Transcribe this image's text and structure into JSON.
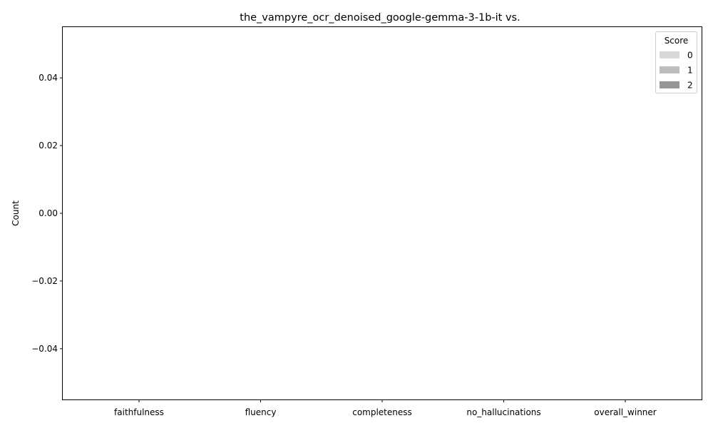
{
  "chart_data": {
    "type": "bar",
    "title": "the_vampyre_ocr_denoised_google-gemma-3-1b-it vs.",
    "xlabel": "",
    "ylabel": "Count",
    "categories": [
      "faithfulness",
      "fluency",
      "completeness",
      "no_hallucinations",
      "overall_winner"
    ],
    "series": [
      {
        "name": "0",
        "values": [
          0,
          0,
          0,
          0,
          0
        ],
        "color": "#d9d9d9"
      },
      {
        "name": "1",
        "values": [
          0,
          0,
          0,
          0,
          0
        ],
        "color": "#bdbdbd"
      },
      {
        "name": "2",
        "values": [
          0,
          0,
          0,
          0,
          0
        ],
        "color": "#969696"
      }
    ],
    "ylim": [
      -0.055,
      0.055
    ],
    "yticks": [
      -0.04,
      -0.02,
      0.0,
      0.02,
      0.04
    ],
    "ytick_labels": [
      "−0.04",
      "−0.02",
      "0.00",
      "0.02",
      "0.04"
    ],
    "legend": {
      "title": "Score",
      "position": "top-right"
    },
    "grid": false
  }
}
